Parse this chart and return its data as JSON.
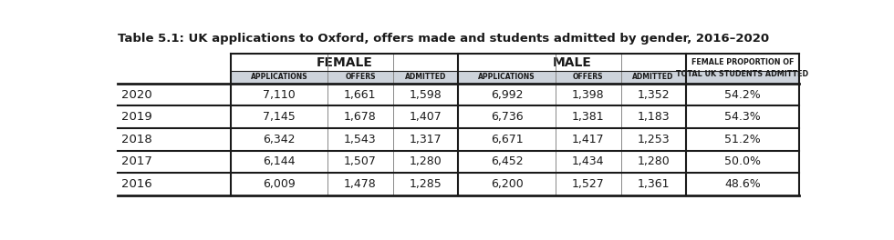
{
  "title": "Table 5.1: UK applications to Oxford, offers made and students admitted by gender, 2016–2020",
  "years": [
    "2020",
    "2019",
    "2018",
    "2017",
    "2016"
  ],
  "female_applications": [
    "7,110",
    "7,145",
    "6,342",
    "6,144",
    "6,009"
  ],
  "female_offers": [
    "1,661",
    "1,678",
    "1,543",
    "1,507",
    "1,478"
  ],
  "female_admitted": [
    "1,598",
    "1,407",
    "1,317",
    "1,280",
    "1,285"
  ],
  "male_applications": [
    "6,992",
    "6,736",
    "6,671",
    "6,452",
    "6,200"
  ],
  "male_offers": [
    "1,398",
    "1,381",
    "1,417",
    "1,434",
    "1,527"
  ],
  "male_admitted": [
    "1,352",
    "1,183",
    "1,253",
    "1,280",
    "1,361"
  ],
  "female_proportion": [
    "54.2%",
    "54.3%",
    "51.2%",
    "50.0%",
    "48.6%"
  ],
  "header1_female": "FEMALE",
  "header1_male": "MALE",
  "subheader_applications": "APPLICATIONS",
  "subheader_offers": "OFFERS",
  "subheader_admitted": "ADMITTED",
  "last_col_header": "FEMALE PROPORTION OF\nTOTAL UK STUDENTS ADMITTED",
  "bg_color": "#ffffff",
  "subheader_bg": "#cdd3db",
  "row_line_color_dark": "#555555",
  "row_line_color_light": "#aaaaaa",
  "col_line_color": "#1a1a1a",
  "text_color": "#1a1a1a",
  "title_color": "#1a1a1a",
  "year_color": "#1a1a1a"
}
